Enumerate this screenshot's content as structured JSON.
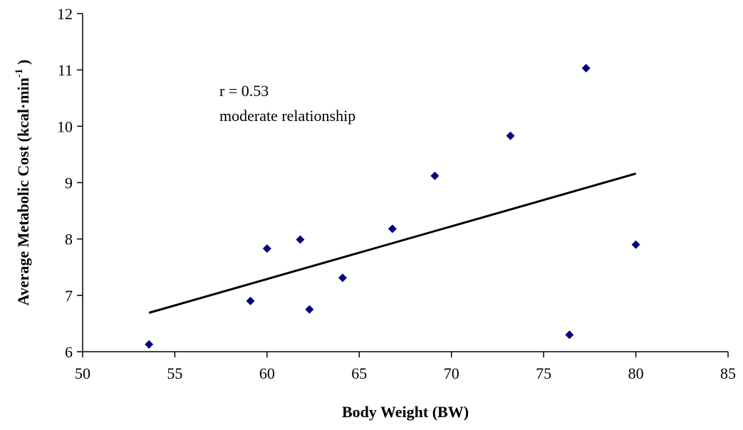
{
  "chart_data": {
    "type": "scatter",
    "title": "",
    "xlabel": "Body Weight (BW)",
    "ylabel_main": "Average Metabolic Cost (kcal·min",
    "ylabel_sup": "-1",
    "ylabel_tail": " )",
    "xlim": [
      50,
      85
    ],
    "ylim": [
      6,
      12
    ],
    "xticks": [
      50,
      55,
      60,
      65,
      70,
      75,
      80,
      85
    ],
    "yticks": [
      6,
      7,
      8,
      9,
      10,
      11,
      12
    ],
    "grid": false,
    "marker_color": "#000080",
    "line_color": "#000000",
    "series": [
      {
        "points": [
          {
            "x": 53.6,
            "y": 6.13
          },
          {
            "x": 59.1,
            "y": 6.9
          },
          {
            "x": 60.0,
            "y": 7.83
          },
          {
            "x": 61.8,
            "y": 7.99
          },
          {
            "x": 62.3,
            "y": 6.75
          },
          {
            "x": 64.1,
            "y": 7.31
          },
          {
            "x": 66.8,
            "y": 8.18
          },
          {
            "x": 69.1,
            "y": 9.12
          },
          {
            "x": 73.2,
            "y": 9.83
          },
          {
            "x": 76.4,
            "y": 6.3
          },
          {
            "x": 77.3,
            "y": 11.03
          },
          {
            "x": 80.0,
            "y": 7.9
          }
        ]
      }
    ],
    "trendline": {
      "x": [
        53.6,
        80.0
      ],
      "y": [
        6.69,
        9.16
      ]
    },
    "annotations": [
      "r = 0.53",
      "moderate relationship"
    ]
  }
}
